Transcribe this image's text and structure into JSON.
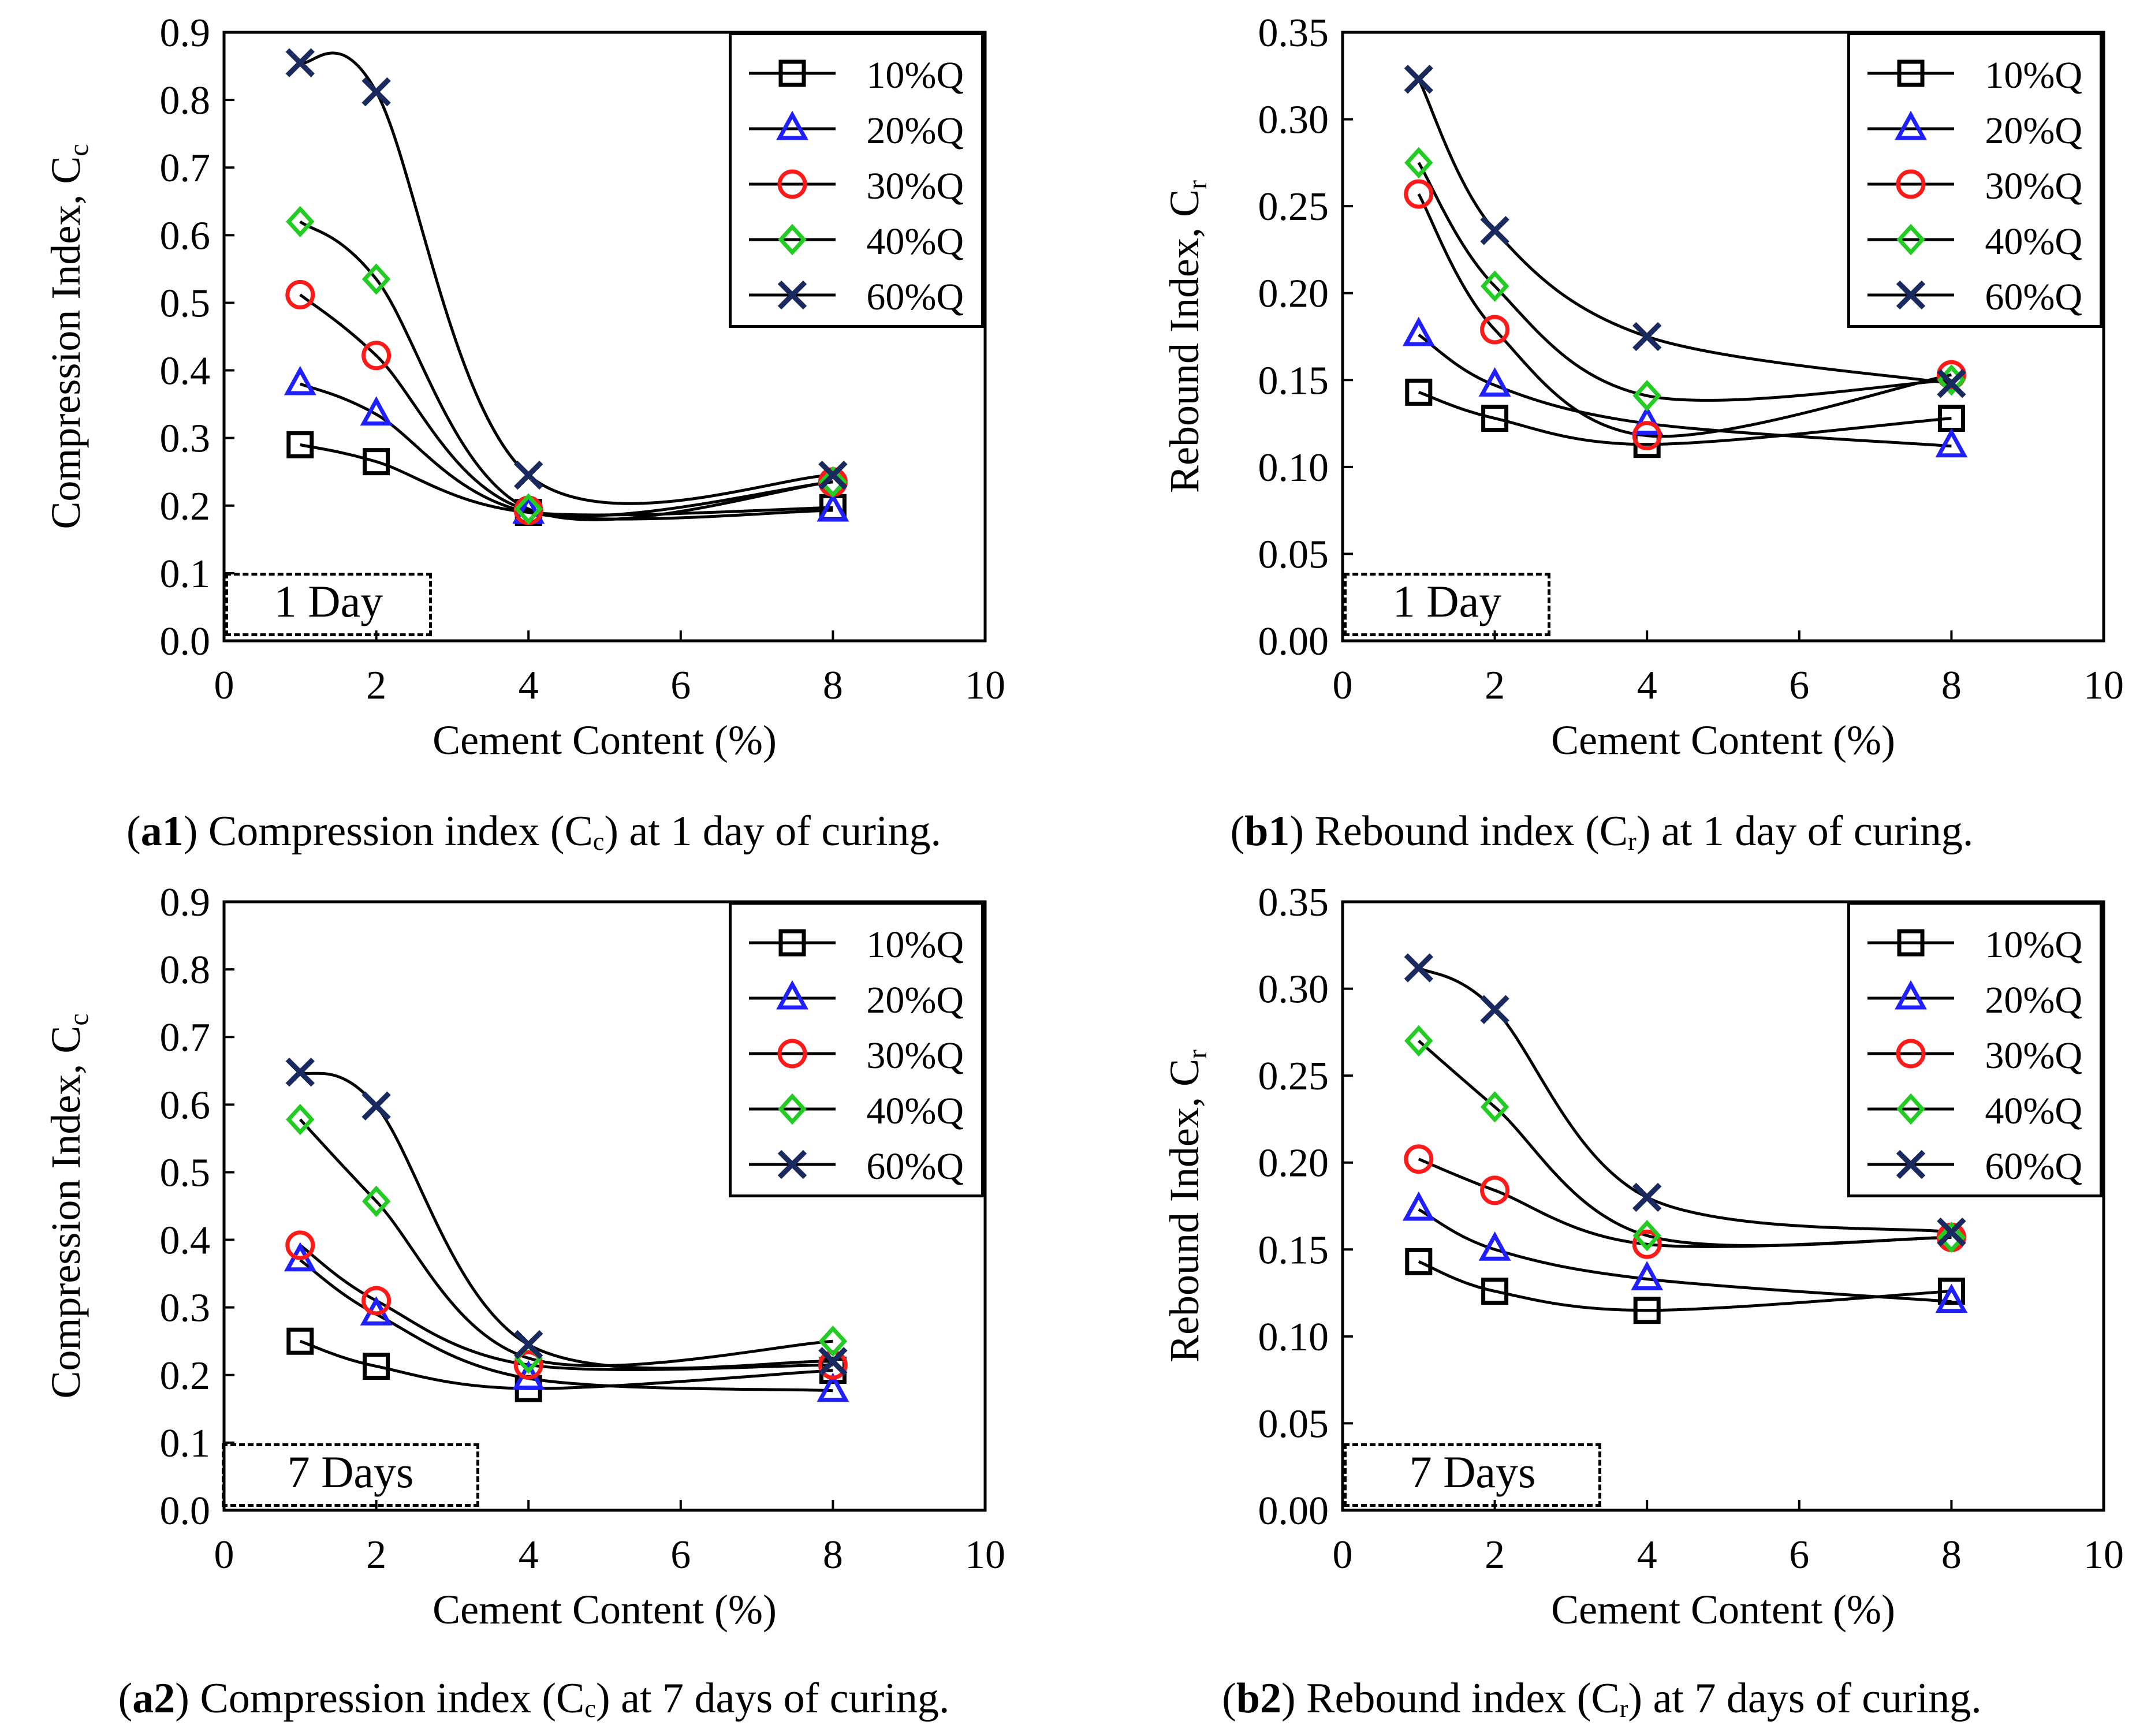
{
  "figure": {
    "captions": [
      {
        "id": "a1",
        "bold": "a1",
        "text_before": " Compression index (C",
        "sub": "c",
        "text_after": ") at 1 day of curing."
      },
      {
        "id": "b1",
        "bold": "b1",
        "text_before": " Rebound index (C",
        "sub": "r",
        "text_after": ") at 1 day of curing."
      },
      {
        "id": "a2",
        "bold": "a2",
        "text_before": " Compression index (C",
        "sub": "c",
        "text_after": ") at 7 days of curing."
      },
      {
        "id": "b2",
        "bold": "b2",
        "text_before": " Rebound index (C",
        "sub": "r",
        "text_after": ") at 7 days of curing."
      }
    ],
    "colors": {
      "10%Q": "#000000",
      "20%Q": "#1f1fff",
      "30%Q": "#ff1a1a",
      "40%Q": "#22cc22",
      "60%Q": "#1a2a5e"
    },
    "markers": {
      "10%Q": "square",
      "20%Q": "triangle",
      "30%Q": "circle",
      "40%Q": "diamond",
      "60%Q": "x"
    }
  },
  "chart_data": [
    {
      "id": "a1",
      "type": "line",
      "title": "",
      "xlabel": "Cement Content (%)",
      "ylabel_main": "Compression Index, C",
      "ylabel_sub": "c",
      "annotation": "1 Day",
      "xlim": [
        0,
        10
      ],
      "ylim": [
        0.0,
        0.9
      ],
      "xticks": [
        "0",
        "2",
        "4",
        "6",
        "8",
        "10"
      ],
      "yticks": [
        "0.0",
        "0.1",
        "0.2",
        "0.3",
        "0.4",
        "0.5",
        "0.6",
        "0.7",
        "0.8",
        "0.9"
      ],
      "x": [
        1,
        2,
        4,
        8
      ],
      "series": [
        {
          "name": "10%Q",
          "values": [
            0.29,
            0.265,
            0.19,
            0.197
          ]
        },
        {
          "name": "20%Q",
          "values": [
            0.38,
            0.335,
            0.19,
            0.193
          ]
        },
        {
          "name": "30%Q",
          "values": [
            0.512,
            0.422,
            0.193,
            0.235
          ]
        },
        {
          "name": "40%Q",
          "values": [
            0.62,
            0.535,
            0.195,
            0.235
          ]
        },
        {
          "name": "60%Q",
          "values": [
            0.855,
            0.812,
            0.245,
            0.245
          ]
        }
      ]
    },
    {
      "id": "b1",
      "type": "line",
      "title": "",
      "xlabel": "Cement Content (%)",
      "ylabel_main": "Rebound Index, C",
      "ylabel_sub": "r",
      "annotation": "1 Day",
      "xlim": [
        0,
        10
      ],
      "ylim": [
        0.0,
        0.35
      ],
      "xticks": [
        "0",
        "2",
        "4",
        "6",
        "8",
        "10"
      ],
      "yticks": [
        "0.00",
        "0.05",
        "0.10",
        "0.15",
        "0.20",
        "0.25",
        "0.30",
        "0.35"
      ],
      "x": [
        1,
        2,
        4,
        8
      ],
      "series": [
        {
          "name": "10%Q",
          "values": [
            0.143,
            0.128,
            0.113,
            0.128
          ]
        },
        {
          "name": "20%Q",
          "values": [
            0.176,
            0.147,
            0.125,
            0.112
          ]
        },
        {
          "name": "30%Q",
          "values": [
            0.257,
            0.179,
            0.118,
            0.153
          ]
        },
        {
          "name": "40%Q",
          "values": [
            0.275,
            0.204,
            0.141,
            0.15
          ]
        },
        {
          "name": "60%Q",
          "values": [
            0.323,
            0.236,
            0.175,
            0.148
          ]
        }
      ]
    },
    {
      "id": "a2",
      "type": "line",
      "title": "",
      "xlabel": "Cement Content (%)",
      "ylabel_main": "Compression Index, C",
      "ylabel_sub": "c",
      "annotation": "7 Days",
      "xlim": [
        0,
        10
      ],
      "ylim": [
        0.0,
        0.9
      ],
      "xticks": [
        "0",
        "2",
        "4",
        "6",
        "8",
        "10"
      ],
      "yticks": [
        "0.0",
        "0.1",
        "0.2",
        "0.3",
        "0.4",
        "0.5",
        "0.6",
        "0.7",
        "0.8",
        "0.9"
      ],
      "x": [
        1,
        2,
        4,
        8
      ],
      "series": [
        {
          "name": "10%Q",
          "values": [
            0.25,
            0.213,
            0.18,
            0.207
          ]
        },
        {
          "name": "20%Q",
          "values": [
            0.37,
            0.29,
            0.195,
            0.177
          ]
        },
        {
          "name": "30%Q",
          "values": [
            0.392,
            0.31,
            0.215,
            0.215
          ]
        },
        {
          "name": "40%Q",
          "values": [
            0.578,
            0.457,
            0.225,
            0.25
          ]
        },
        {
          "name": "60%Q",
          "values": [
            0.648,
            0.598,
            0.245,
            0.22
          ]
        }
      ]
    },
    {
      "id": "b2",
      "type": "line",
      "title": "",
      "xlabel": "Cement Content (%)",
      "ylabel_main": "Rebound Index, C",
      "ylabel_sub": "r",
      "annotation": "7 Days",
      "xlim": [
        0,
        10
      ],
      "ylim": [
        0.0,
        0.35
      ],
      "xticks": [
        "0",
        "2",
        "4",
        "6",
        "8",
        "10"
      ],
      "yticks": [
        "0.00",
        "0.05",
        "0.10",
        "0.15",
        "0.20",
        "0.25",
        "0.30",
        "0.35"
      ],
      "x": [
        1,
        2,
        4,
        8
      ],
      "series": [
        {
          "name": "10%Q",
          "values": [
            0.143,
            0.126,
            0.115,
            0.126
          ]
        },
        {
          "name": "20%Q",
          "values": [
            0.173,
            0.15,
            0.133,
            0.12
          ]
        },
        {
          "name": "30%Q",
          "values": [
            0.202,
            0.184,
            0.153,
            0.157
          ]
        },
        {
          "name": "40%Q",
          "values": [
            0.27,
            0.232,
            0.158,
            0.157
          ]
        },
        {
          "name": "60%Q",
          "values": [
            0.312,
            0.288,
            0.18,
            0.16
          ]
        }
      ]
    }
  ]
}
